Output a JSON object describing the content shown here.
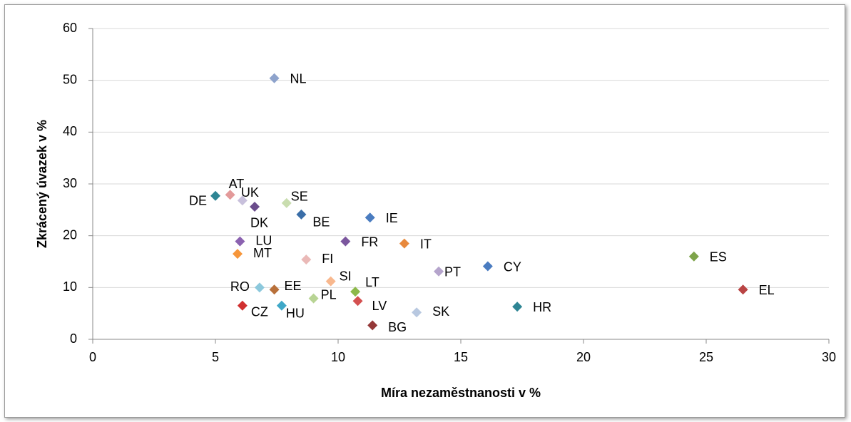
{
  "chart_data": {
    "type": "scatter",
    "x_label": "Míra nezaměstnanosti v %",
    "y_label": "Zkrácený úvazek v %",
    "xlim": [
      0,
      30
    ],
    "xticks": [
      0,
      5,
      10,
      15,
      20,
      25,
      30
    ],
    "ylim": [
      0,
      60
    ],
    "yticks": [
      0,
      10,
      20,
      30,
      40,
      50,
      60
    ],
    "grid": true,
    "labels": [
      "NL",
      "AT",
      "DE",
      "UK",
      "DK",
      "SE",
      "BE",
      "IE",
      "LU",
      "FR",
      "IT",
      "MT",
      "FI",
      "ES",
      "CY",
      "PT",
      "SI",
      "EL",
      "RO",
      "EE",
      "LT",
      "PL",
      "LV",
      "HR",
      "CZ",
      "HU",
      "SK",
      "BG"
    ],
    "x": [
      7.4,
      5.6,
      5.0,
      6.1,
      6.6,
      7.9,
      8.5,
      11.3,
      6.0,
      10.3,
      12.7,
      5.9,
      8.7,
      24.5,
      16.1,
      14.1,
      9.7,
      26.5,
      6.8,
      7.4,
      10.7,
      9.0,
      10.8,
      17.3,
      6.1,
      7.7,
      13.2,
      11.4
    ],
    "y": [
      50.4,
      27.9,
      27.7,
      26.8,
      25.6,
      26.3,
      24.1,
      23.5,
      18.9,
      18.9,
      18.5,
      16.5,
      15.4,
      16.0,
      14.1,
      13.1,
      11.2,
      9.6,
      10.0,
      9.6,
      9.2,
      7.9,
      7.4,
      6.3,
      6.5,
      6.5,
      5.2,
      2.7
    ],
    "colors": [
      "#8ea3cc",
      "#e39a9a",
      "#2e8594",
      "#c8c0dc",
      "#6b4d8c",
      "#c9ddaf",
      "#3a6ea8",
      "#4a7cc0",
      "#8b62b0",
      "#7b579e",
      "#e8893c",
      "#f6963a",
      "#eab9b7",
      "#7ea44a",
      "#4a7cc0",
      "#b5a4cc",
      "#f8b88e",
      "#b94444",
      "#8cc8dc",
      "#b8703a",
      "#8cb84a",
      "#b8d494",
      "#d45050",
      "#2e8594",
      "#d03030",
      "#40a8c8",
      "#b8c8e0",
      "#943838"
    ]
  }
}
